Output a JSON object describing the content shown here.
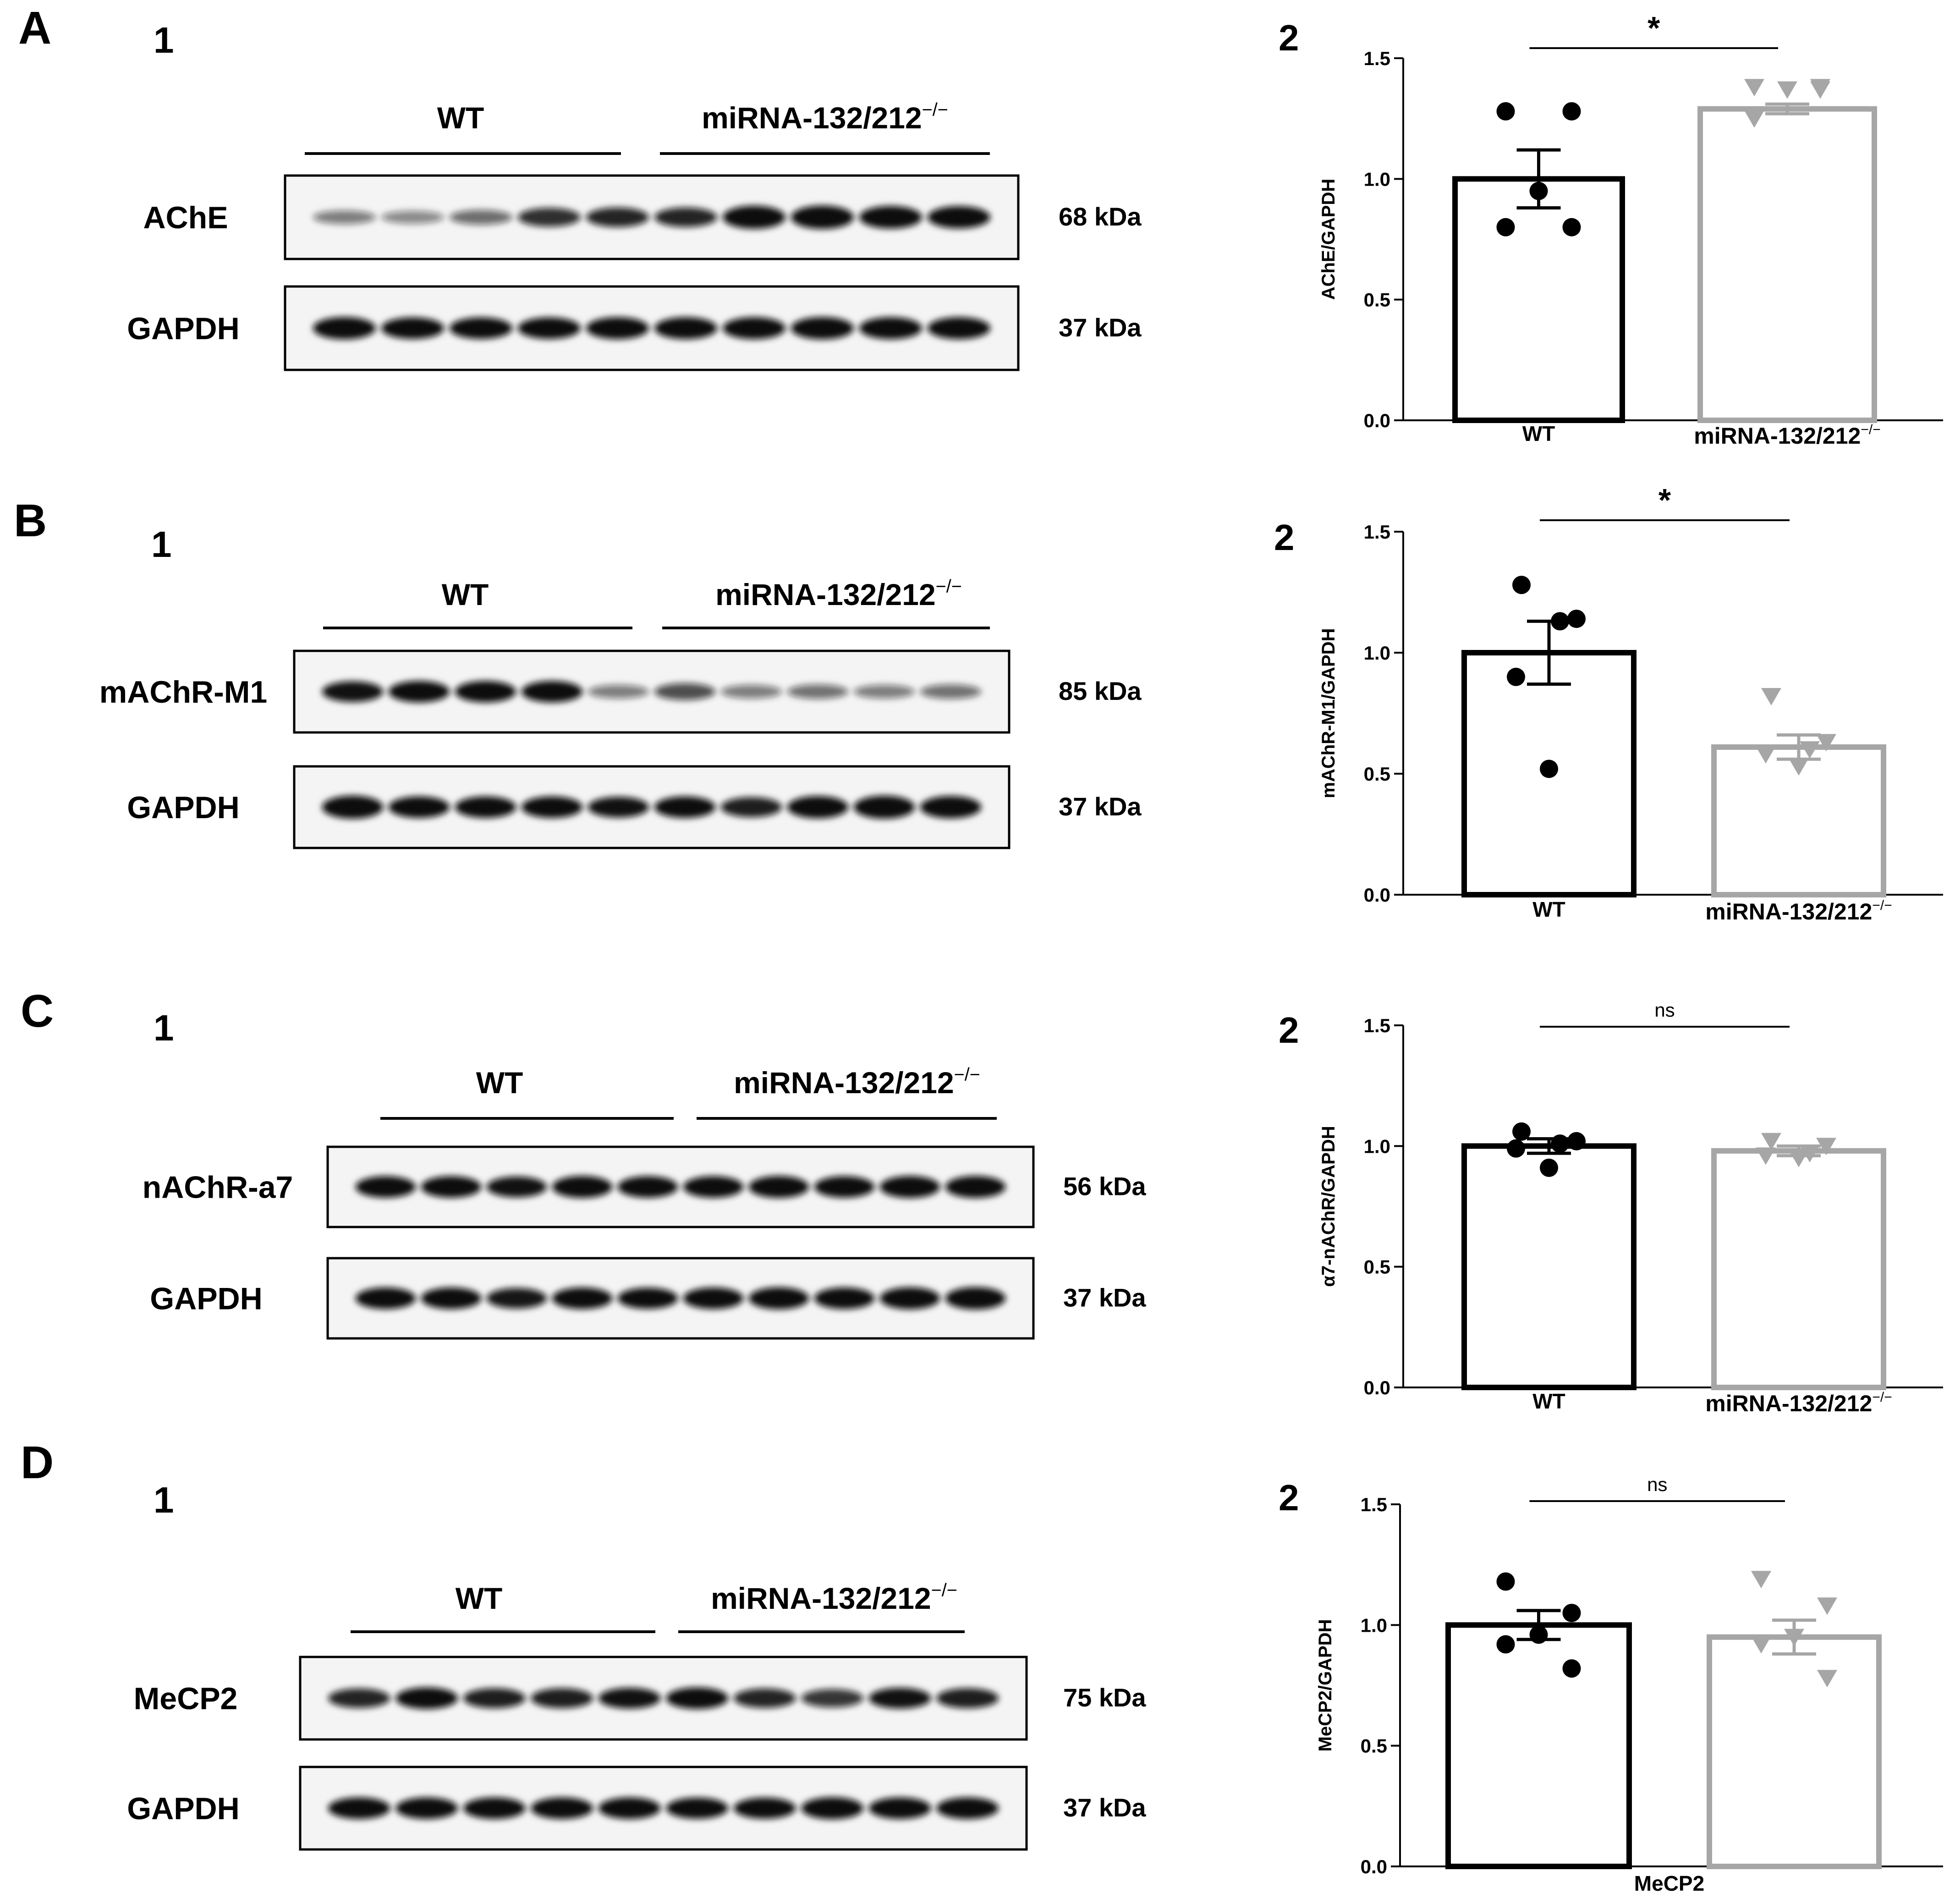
{
  "panels": [
    {
      "letter": "A",
      "blot_number": "1",
      "chart_number": "2",
      "blot": {
        "group_labels": [
          "WT",
          "miRNA-132/212"
        ],
        "superscript": "−/−",
        "bands": [
          {
            "name": "AChE",
            "size": "68 kDa",
            "intensities": [
              0.35,
              0.3,
              0.42,
              0.68,
              0.72,
              0.72,
              0.95,
              0.97,
              0.92,
              0.9
            ]
          },
          {
            "name": "GAPDH",
            "size": "37 kDa",
            "intensities": [
              0.9,
              0.85,
              0.85,
              0.85,
              0.88,
              0.88,
              0.88,
              0.9,
              0.88,
              0.88
            ]
          }
        ]
      }
    },
    {
      "letter": "B",
      "blot_number": "1",
      "chart_number": "2",
      "blot": {
        "group_labels": [
          "WT",
          "miRNA-132/212"
        ],
        "superscript": "−/−",
        "bands": [
          {
            "name": "mAChR-M1",
            "size": "85 kDa",
            "intensities": [
              0.8,
              0.85,
              0.85,
              0.85,
              0.35,
              0.55,
              0.35,
              0.4,
              0.35,
              0.4
            ]
          },
          {
            "name": "GAPDH",
            "size": "37 kDa",
            "intensities": [
              0.95,
              0.85,
              0.85,
              0.85,
              0.8,
              0.85,
              0.75,
              0.9,
              0.95,
              0.9
            ]
          }
        ]
      }
    },
    {
      "letter": "C",
      "blot_number": "1",
      "chart_number": "2",
      "blot": {
        "group_labels": [
          "WT",
          "miRNA-132/212"
        ],
        "superscript": "−/−",
        "bands": [
          {
            "name": "nAChR-a7",
            "size": "56 kDa",
            "intensities": [
              0.85,
              0.85,
              0.8,
              0.88,
              0.85,
              0.85,
              0.88,
              0.85,
              0.88,
              0.88
            ]
          },
          {
            "name": "GAPDH",
            "size": "37 kDa",
            "intensities": [
              0.85,
              0.85,
              0.78,
              0.85,
              0.82,
              0.85,
              0.88,
              0.85,
              0.88,
              0.9
            ]
          }
        ]
      }
    },
    {
      "letter": "D",
      "blot_number": "1",
      "chart_number": "2",
      "blot": {
        "group_labels": [
          "WT",
          "miRNA-132/212"
        ],
        "superscript": "−/−",
        "bands": [
          {
            "name": "MeCP2",
            "size": "75 kDa",
            "intensities": [
              0.72,
              0.85,
              0.75,
              0.75,
              0.8,
              0.85,
              0.72,
              0.65,
              0.8,
              0.75
            ]
          },
          {
            "name": "GAPDH",
            "size": "37 kDa",
            "intensities": [
              0.85,
              0.85,
              0.85,
              0.85,
              0.85,
              0.82,
              0.82,
              0.88,
              0.85,
              0.85
            ]
          }
        ]
      }
    }
  ],
  "chart_data": [
    {
      "type": "bar",
      "ylabel": "AChE/GAPDH",
      "ylim": [
        0,
        1.5
      ],
      "yticks": [
        "0.0",
        "0.5",
        "1.0",
        "1.5"
      ],
      "categories": [
        "WT",
        "miRNA-132/212"
      ],
      "category_superscripts": [
        "",
        "−/−"
      ],
      "means": [
        1.0,
        1.29
      ],
      "sem": [
        0.12,
        0.02
      ],
      "points": [
        [
          1.28,
          1.28,
          0.95,
          0.8,
          0.8
        ],
        [
          1.38,
          1.38,
          1.37,
          1.25,
          1.37
        ]
      ],
      "significance": "*",
      "colors": [
        "#000000",
        "#a6a6a6"
      ],
      "markers": [
        "circle",
        "triangle-down"
      ]
    },
    {
      "type": "bar",
      "ylabel": "mAChR-M1/GAPDH",
      "ylim": [
        0,
        1.5
      ],
      "yticks": [
        "0.0",
        "0.5",
        "1.0",
        "1.5"
      ],
      "categories": [
        "WT",
        "miRNA-132/212"
      ],
      "category_superscripts": [
        "",
        "−/−"
      ],
      "means": [
        1.0,
        0.61
      ],
      "sem": [
        0.13,
        0.05
      ],
      "points": [
        [
          1.28,
          1.14,
          1.13,
          0.9,
          0.52
        ],
        [
          0.82,
          0.63,
          0.6,
          0.58,
          0.53
        ]
      ],
      "significance": "*",
      "colors": [
        "#000000",
        "#a6a6a6"
      ],
      "markers": [
        "circle",
        "triangle-down"
      ]
    },
    {
      "type": "bar",
      "ylabel": "α7-nAChR/GAPDH",
      "ylim": [
        0,
        1.5
      ],
      "yticks": [
        "0.0",
        "0.5",
        "1.0",
        "1.5"
      ],
      "categories": [
        "WT",
        "miRNA-132/212"
      ],
      "category_superscripts": [
        "",
        "−/−"
      ],
      "means": [
        1.0,
        0.98
      ],
      "sem": [
        0.03,
        0.02
      ],
      "points": [
        [
          1.06,
          1.02,
          1.01,
          0.99,
          0.91
        ],
        [
          1.02,
          1.0,
          0.97,
          0.96,
          0.95
        ]
      ],
      "significance": "ns",
      "colors": [
        "#000000",
        "#a6a6a6"
      ],
      "markers": [
        "circle",
        "triangle-down"
      ]
    },
    {
      "type": "bar",
      "ylabel": "MeCP2/GAPDH",
      "ylim": [
        0,
        1.5
      ],
      "yticks": [
        "0.0",
        "0.5",
        "1.0",
        "1.5"
      ],
      "categories": [],
      "category_superscripts": [],
      "xlabel": "MeCP2",
      "means": [
        1.0,
        0.95
      ],
      "sem": [
        0.06,
        0.07
      ],
      "points": [
        [
          1.18,
          1.05,
          0.96,
          0.92,
          0.82
        ],
        [
          1.19,
          1.08,
          0.95,
          0.92,
          0.78
        ]
      ],
      "significance": "ns",
      "colors": [
        "#000000",
        "#a6a6a6"
      ],
      "markers": [
        "circle",
        "triangle-down"
      ]
    }
  ]
}
